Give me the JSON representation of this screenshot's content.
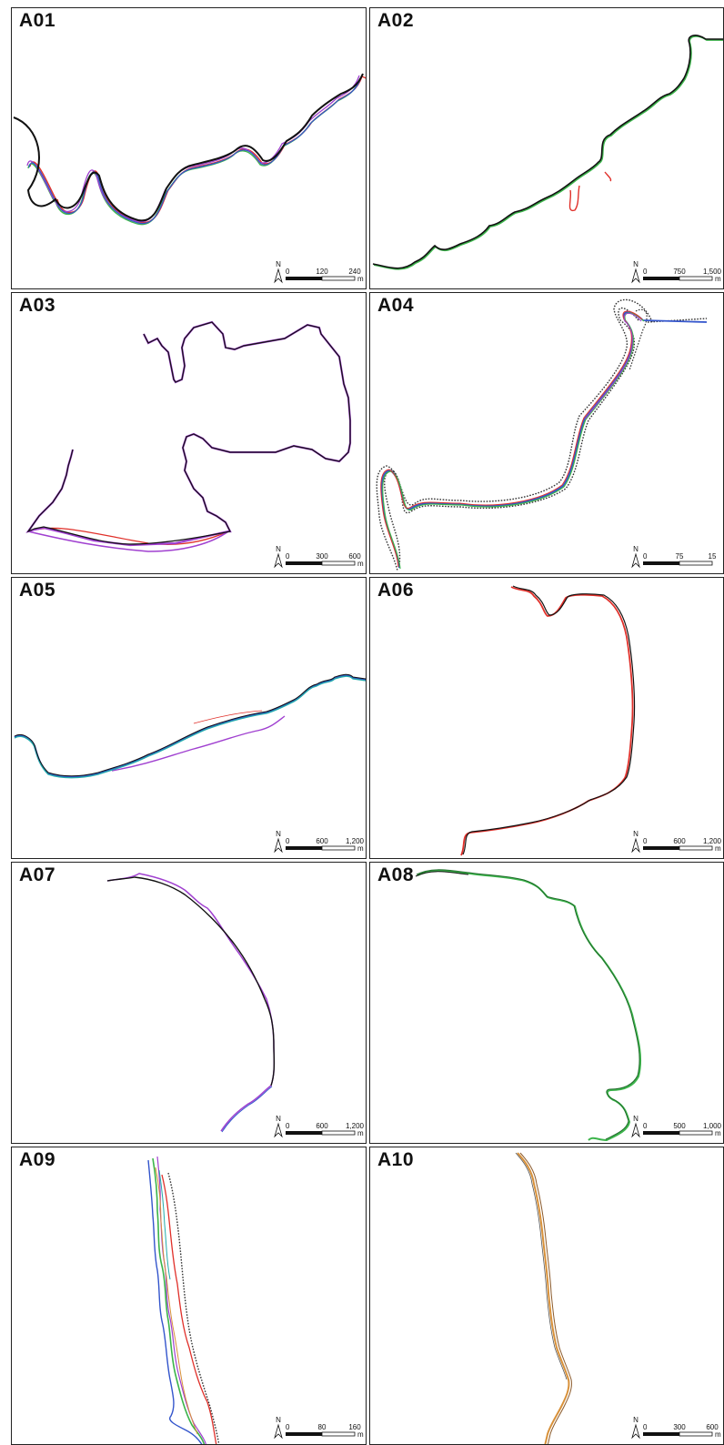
{
  "panels": [
    {
      "label": "A01",
      "scale": {
        "ticks": [
          "0",
          "120",
          "240"
        ],
        "unit": "m"
      }
    },
    {
      "label": "A02",
      "scale": {
        "ticks": [
          "0",
          "750",
          "1,500"
        ],
        "unit": "m"
      }
    },
    {
      "label": "A03",
      "scale": {
        "ticks": [
          "0",
          "300",
          "600"
        ],
        "unit": "m"
      }
    },
    {
      "label": "A04",
      "scale": {
        "ticks": [
          "0",
          "75",
          "15"
        ],
        "unit": ""
      }
    },
    {
      "label": "A05",
      "scale": {
        "ticks": [
          "0",
          "600",
          "1,200"
        ],
        "unit": "m"
      }
    },
    {
      "label": "A06",
      "scale": {
        "ticks": [
          "0",
          "600",
          "1,200"
        ],
        "unit": "m"
      }
    },
    {
      "label": "A07",
      "scale": {
        "ticks": [
          "0",
          "600",
          "1,200"
        ],
        "unit": "m"
      }
    },
    {
      "label": "A08",
      "scale": {
        "ticks": [
          "0",
          "500",
          "1,000"
        ],
        "unit": "m"
      }
    },
    {
      "label": "A09",
      "scale": {
        "ticks": [
          "0",
          "80",
          "160"
        ],
        "unit": "m"
      }
    },
    {
      "label": "A10",
      "scale": {
        "ticks": [
          "0",
          "300",
          "600"
        ],
        "unit": "m"
      }
    }
  ],
  "north_label": "N",
  "colors": {
    "black": "#111111",
    "red": "#e0302a",
    "green": "#3cb44b",
    "blue": "#3355cc",
    "purple": "#a040d0",
    "teal": "#22aaaa",
    "orange": "#d8913a",
    "dark_green": "#1f6b2a",
    "gray": "#777777"
  }
}
